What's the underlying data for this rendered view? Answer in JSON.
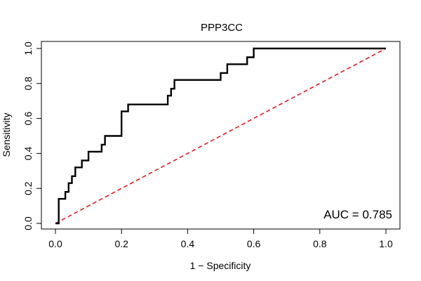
{
  "chart_data": {
    "type": "line",
    "title": "PPP3CC",
    "xlabel": "1 − Specificity",
    "ylabel": "Sensitivity",
    "xlim": [
      0,
      1
    ],
    "ylim": [
      0,
      1
    ],
    "x_ticks": [
      "0.0",
      "0.2",
      "0.4",
      "0.6",
      "0.8",
      "1.0"
    ],
    "y_ticks": [
      "0.0",
      "0.2",
      "0.4",
      "0.6",
      "0.8",
      "1.0"
    ],
    "grid": false,
    "annotation": "AUC = 0.785",
    "series": [
      {
        "color": "#000000",
        "style": "solid",
        "x": [
          0.0,
          0.01,
          0.01,
          0.03,
          0.03,
          0.04,
          0.04,
          0.05,
          0.05,
          0.06,
          0.06,
          0.07,
          0.07,
          0.08,
          0.08,
          0.1,
          0.1,
          0.14,
          0.14,
          0.15,
          0.15,
          0.2,
          0.2,
          0.22,
          0.22,
          0.34,
          0.34,
          0.35,
          0.35,
          0.36,
          0.36,
          0.5,
          0.5,
          0.51,
          0.51,
          0.52,
          0.52,
          0.58,
          0.58,
          0.59,
          0.59,
          0.6,
          0.6,
          1.0
        ],
        "y": [
          0.0,
          0.0,
          0.14,
          0.14,
          0.18,
          0.18,
          0.23,
          0.23,
          0.27,
          0.27,
          0.32,
          0.32,
          0.32,
          0.32,
          0.36,
          0.36,
          0.41,
          0.41,
          0.45,
          0.45,
          0.5,
          0.5,
          0.64,
          0.64,
          0.68,
          0.68,
          0.73,
          0.73,
          0.77,
          0.77,
          0.82,
          0.82,
          0.86,
          0.86,
          0.86,
          0.86,
          0.91,
          0.91,
          0.95,
          0.95,
          0.95,
          0.95,
          1.0,
          1.0
        ]
      },
      {
        "color": "#e41a1c",
        "style": "dashed",
        "x": [
          0.0,
          1.0
        ],
        "y": [
          0.0,
          1.0
        ]
      }
    ]
  }
}
